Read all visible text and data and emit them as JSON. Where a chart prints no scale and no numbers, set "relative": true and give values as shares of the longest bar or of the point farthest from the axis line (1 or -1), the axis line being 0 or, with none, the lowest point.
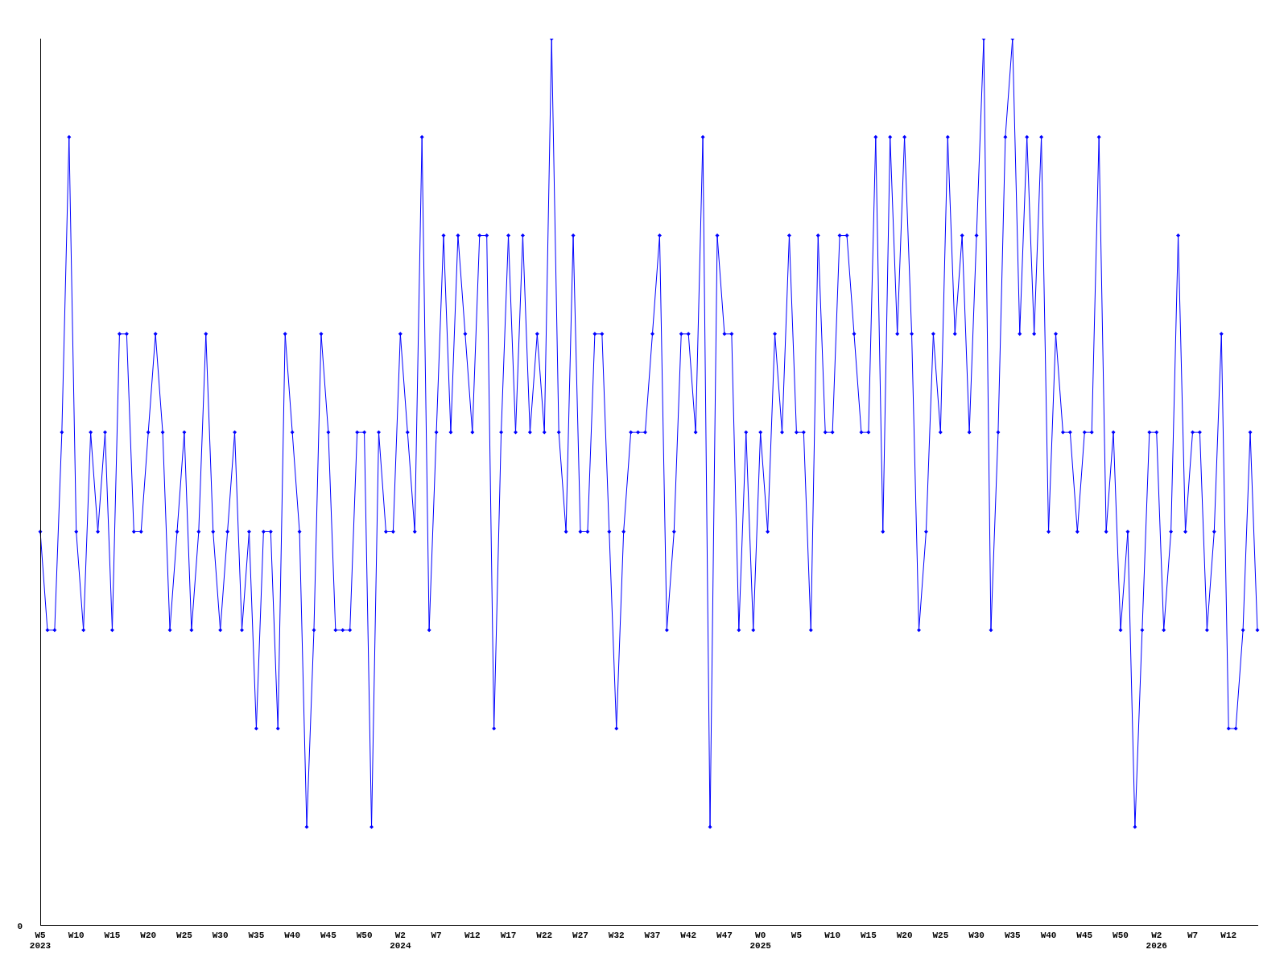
{
  "chart_data": {
    "type": "line",
    "relative": true,
    "color": "#0000ff",
    "marker": "diamond",
    "line_style": "solid",
    "grid": false,
    "legend": false,
    "annotations": [
      "0"
    ],
    "categories": [
      "W5\n2023",
      null,
      null,
      null,
      null,
      "W10",
      null,
      null,
      null,
      null,
      "W15",
      null,
      null,
      null,
      null,
      "W20",
      null,
      null,
      null,
      null,
      "W25",
      null,
      null,
      null,
      null,
      "W30",
      null,
      null,
      null,
      null,
      "W35",
      null,
      null,
      null,
      null,
      "W40",
      null,
      null,
      null,
      null,
      "W45",
      null,
      null,
      null,
      null,
      "W50",
      null,
      null,
      null,
      null,
      "W2\n2024",
      null,
      null,
      null,
      null,
      "W7",
      null,
      null,
      null,
      null,
      "W12",
      null,
      null,
      null,
      null,
      "W17",
      null,
      null,
      null,
      null,
      "W22",
      null,
      null,
      null,
      null,
      "W27",
      null,
      null,
      null,
      null,
      "W32",
      null,
      null,
      null,
      null,
      "W37",
      null,
      null,
      null,
      null,
      "W42",
      null,
      null,
      null,
      null,
      "W47",
      null,
      null,
      null,
      null,
      "W0\n2025",
      null,
      null,
      null,
      null,
      "W5",
      null,
      null,
      null,
      null,
      "W10",
      null,
      null,
      null,
      null,
      "W15",
      null,
      null,
      null,
      null,
      "W20",
      null,
      null,
      null,
      null,
      "W25",
      null,
      null,
      null,
      null,
      "W30",
      null,
      null,
      null,
      null,
      "W35",
      null,
      null,
      null,
      null,
      "W40",
      null,
      null,
      null,
      null,
      "W45",
      null,
      null,
      null,
      null,
      "W50",
      null,
      null,
      null,
      null,
      "W2\n2026",
      null,
      null,
      null,
      null,
      "W7",
      null,
      null,
      null,
      null,
      "W12",
      null,
      null,
      null,
      null
    ],
    "values": [
      0.444,
      0.333,
      0.333,
      0.556,
      0.889,
      0.444,
      0.333,
      0.556,
      0.444,
      0.556,
      0.333,
      0.667,
      0.667,
      0.444,
      0.444,
      0.556,
      0.667,
      0.556,
      0.333,
      0.444,
      0.556,
      0.333,
      0.444,
      0.667,
      0.444,
      0.333,
      0.444,
      0.556,
      0.333,
      0.444,
      0.222,
      0.444,
      0.444,
      0.222,
      0.667,
      0.556,
      0.444,
      0.111,
      0.333,
      0.667,
      0.556,
      0.333,
      0.333,
      0.333,
      0.556,
      0.556,
      0.111,
      0.556,
      0.444,
      0.444,
      0.667,
      0.556,
      0.444,
      0.889,
      0.333,
      0.556,
      0.778,
      0.556,
      0.778,
      0.667,
      0.556,
      0.778,
      0.778,
      0.222,
      0.556,
      0.778,
      0.556,
      0.778,
      0.556,
      0.667,
      0.556,
      1,
      0.556,
      0.444,
      0.778,
      0.444,
      0.444,
      0.667,
      0.667,
      0.444,
      0.222,
      0.444,
      0.556,
      0.556,
      0.556,
      0.667,
      0.778,
      0.333,
      0.444,
      0.667,
      0.667,
      0.556,
      0.889,
      0.111,
      0.778,
      0.667,
      0.667,
      0.333,
      0.556,
      0.333,
      0.556,
      0.444,
      0.667,
      0.556,
      0.778,
      0.556,
      0.556,
      0.333,
      0.778,
      0.556,
      0.556,
      0.778,
      0.778,
      0.667,
      0.556,
      0.556,
      0.889,
      0.444,
      0.889,
      0.667,
      0.889,
      0.667,
      0.333,
      0.444,
      0.667,
      0.556,
      0.889,
      0.667,
      0.778,
      0.556,
      0.778,
      1,
      0.333,
      0.556,
      0.889,
      1,
      0.667,
      0.889,
      0.667,
      0.889,
      0.444,
      0.667,
      0.556,
      0.556,
      0.444,
      0.556,
      0.556,
      0.889,
      0.444,
      0.556,
      0.333,
      0.444,
      0.111,
      0.333,
      0.556,
      0.556,
      0.333,
      0.444,
      0.778,
      0.444,
      0.556,
      0.556,
      0.333,
      0.444,
      0.667,
      0.222,
      0.222,
      0.333,
      0.556,
      0.333
    ]
  }
}
